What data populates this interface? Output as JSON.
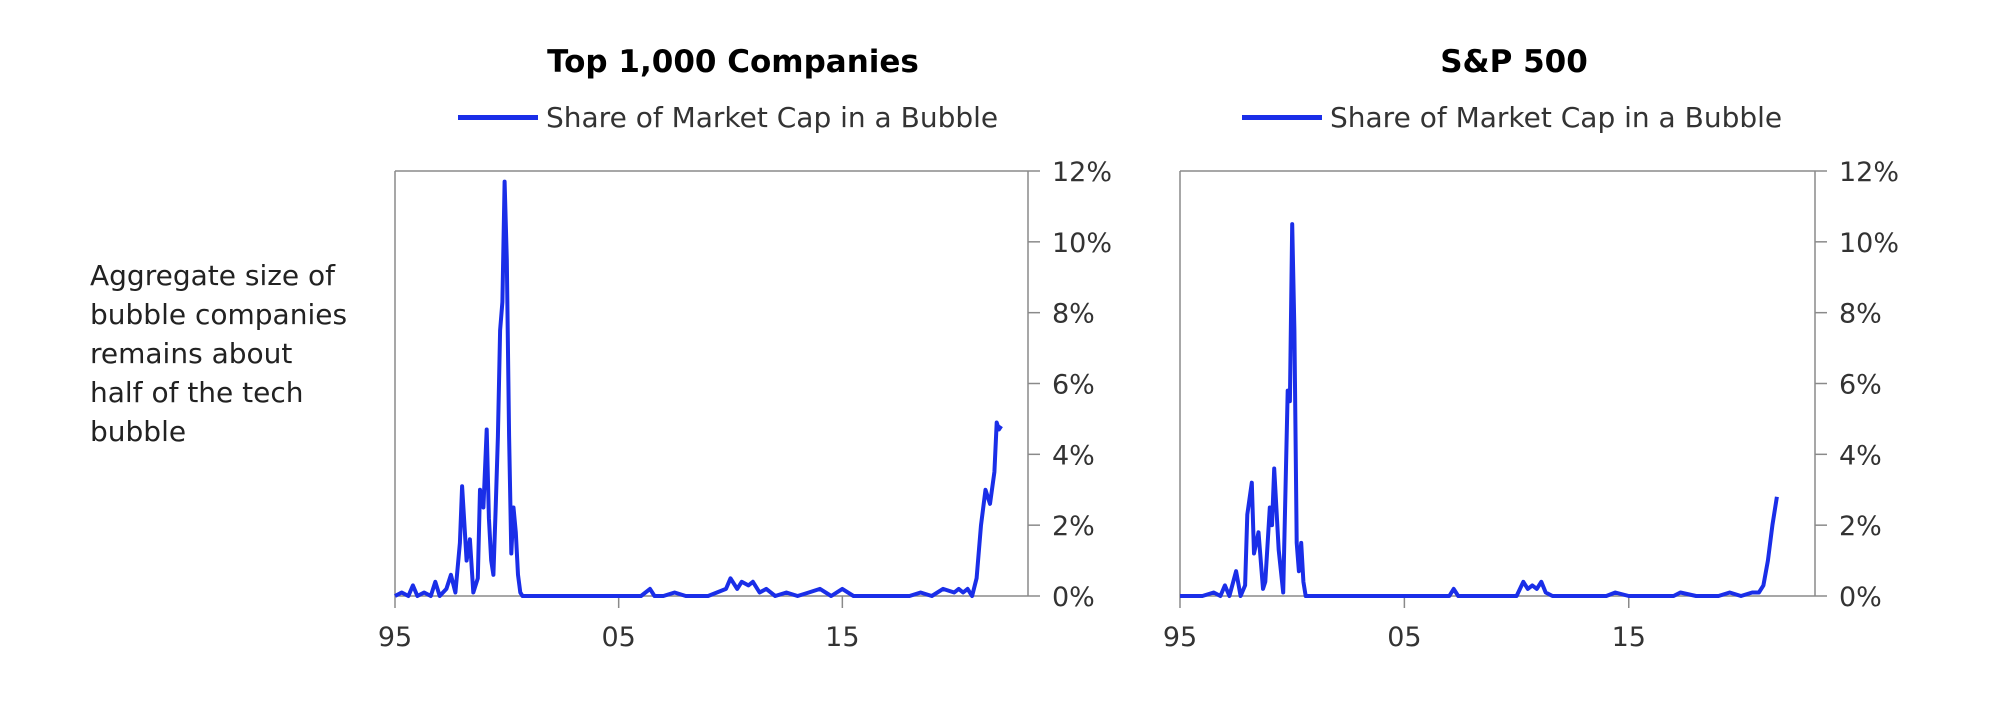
{
  "side_note": {
    "lines": [
      "Aggregate size of",
      "bubble companies",
      "remains about",
      "half of the tech",
      "bubble"
    ]
  },
  "colors": {
    "series": "#1a2ee8",
    "axis": "#8a8a8a"
  },
  "chart_data": [
    {
      "type": "line",
      "title": "Top 1,000 Companies",
      "legend": "top-center",
      "xlabel": "",
      "ylabel": "",
      "xlim": [
        1995,
        2023.3
      ],
      "ylim": [
        0,
        12
      ],
      "x_ticks": [
        1995,
        2005,
        2015
      ],
      "x_tick_labels": [
        "95",
        "05",
        "15"
      ],
      "y_ticks": [
        0,
        2,
        4,
        6,
        8,
        10,
        12
      ],
      "y_tick_labels": [
        "0%",
        "2%",
        "4%",
        "6%",
        "8%",
        "10%",
        "12%"
      ],
      "series": [
        {
          "name": "Share of Market Cap in a Bubble",
          "x": [
            1995.0,
            1995.3,
            1995.6,
            1995.8,
            1996.0,
            1996.3,
            1996.6,
            1996.8,
            1997.0,
            1997.3,
            1997.5,
            1997.7,
            1997.9,
            1998.0,
            1998.2,
            1998.35,
            1998.5,
            1998.7,
            1998.8,
            1998.95,
            1999.1,
            1999.2,
            1999.3,
            1999.4,
            1999.5,
            1999.6,
            1999.7,
            1999.8,
            1999.9,
            2000.0,
            2000.1,
            2000.2,
            2000.3,
            2000.4,
            2000.5,
            2000.6,
            2000.7,
            2000.8,
            2001.0,
            2001.5,
            2002,
            2003,
            2004,
            2005,
            2006,
            2006.4,
            2006.6,
            2007,
            2007.5,
            2008,
            2009,
            2009.8,
            2010.0,
            2010.3,
            2010.5,
            2010.8,
            2011.0,
            2011.3,
            2011.6,
            2012.0,
            2012.5,
            2013.0,
            2013.5,
            2014.0,
            2014.5,
            2015.0,
            2015.5,
            2016,
            2016.5,
            2017,
            2017.5,
            2018,
            2018.5,
            2019,
            2019.5,
            2020,
            2020.2,
            2020.4,
            2020.6,
            2020.8,
            2021.0,
            2021.2,
            2021.4,
            2021.6,
            2021.8,
            2021.9,
            2022.0,
            2022.1
          ],
          "y": [
            0.0,
            0.1,
            0.0,
            0.3,
            0.0,
            0.1,
            0.0,
            0.4,
            0.0,
            0.2,
            0.6,
            0.1,
            1.5,
            3.1,
            1.0,
            1.6,
            0.1,
            0.5,
            3.0,
            2.5,
            4.7,
            2.2,
            1.0,
            0.6,
            2.5,
            4.5,
            7.5,
            8.3,
            11.7,
            9.5,
            4.5,
            1.2,
            2.5,
            1.8,
            0.6,
            0.1,
            0.0,
            0.0,
            0.0,
            0.0,
            0.0,
            0.0,
            0.0,
            0.0,
            0.0,
            0.2,
            0.0,
            0.0,
            0.1,
            0.0,
            0.0,
            0.2,
            0.5,
            0.2,
            0.4,
            0.3,
            0.4,
            0.1,
            0.2,
            0.0,
            0.1,
            0.0,
            0.1,
            0.2,
            0.0,
            0.2,
            0.0,
            0.0,
            0.0,
            0.0,
            0.0,
            0.0,
            0.1,
            0.0,
            0.2,
            0.1,
            0.2,
            0.1,
            0.2,
            0.0,
            0.5,
            2.0,
            3.0,
            2.6,
            3.5,
            4.9,
            4.7,
            4.8
          ]
        }
      ]
    },
    {
      "type": "line",
      "title": "S&P 500",
      "legend": "top-center",
      "xlabel": "",
      "ylabel": "",
      "xlim": [
        1995,
        2023.3
      ],
      "ylim": [
        0,
        12
      ],
      "x_ticks": [
        1995,
        2005,
        2015
      ],
      "x_tick_labels": [
        "95",
        "05",
        "15"
      ],
      "y_ticks": [
        0,
        2,
        4,
        6,
        8,
        10,
        12
      ],
      "y_tick_labels": [
        "0%",
        "2%",
        "4%",
        "6%",
        "8%",
        "10%",
        "12%"
      ],
      "series": [
        {
          "name": "Share of Market Cap in a Bubble",
          "x": [
            1995.0,
            1995.5,
            1996.0,
            1996.5,
            1996.8,
            1997.0,
            1997.2,
            1997.5,
            1997.7,
            1997.9,
            1998.0,
            1998.2,
            1998.3,
            1998.5,
            1998.7,
            1998.8,
            1999.0,
            1999.1,
            1999.2,
            1999.4,
            1999.6,
            1999.8,
            1999.9,
            2000.0,
            2000.1,
            2000.2,
            2000.3,
            2000.4,
            2000.5,
            2000.6,
            2000.8,
            2001.0,
            2002,
            2003,
            2004,
            2005,
            2006,
            2007,
            2007.2,
            2007.4,
            2008,
            2009,
            2010,
            2010.3,
            2010.5,
            2010.7,
            2010.9,
            2011.1,
            2011.3,
            2011.6,
            2012,
            2013,
            2014,
            2014.4,
            2015,
            2016,
            2017,
            2017.3,
            2018,
            2019,
            2019.5,
            2020,
            2020.5,
            2020.8,
            2021.0,
            2021.2,
            2021.4,
            2021.6
          ],
          "y": [
            0.0,
            0.0,
            0.0,
            0.1,
            0.0,
            0.3,
            0.0,
            0.7,
            0.0,
            0.3,
            2.3,
            3.2,
            1.2,
            1.8,
            0.2,
            0.4,
            2.5,
            2.0,
            3.6,
            1.3,
            0.1,
            5.8,
            5.5,
            10.5,
            7.5,
            1.5,
            0.7,
            1.5,
            0.4,
            0.0,
            0.0,
            0.0,
            0.0,
            0.0,
            0.0,
            0.0,
            0.0,
            0.0,
            0.2,
            0.0,
            0.0,
            0.0,
            0.0,
            0.4,
            0.2,
            0.3,
            0.2,
            0.4,
            0.1,
            0.0,
            0.0,
            0.0,
            0.0,
            0.1,
            0.0,
            0.0,
            0.0,
            0.1,
            0.0,
            0.0,
            0.1,
            0.0,
            0.1,
            0.1,
            0.3,
            1.0,
            2.0,
            2.8
          ]
        }
      ]
    }
  ]
}
